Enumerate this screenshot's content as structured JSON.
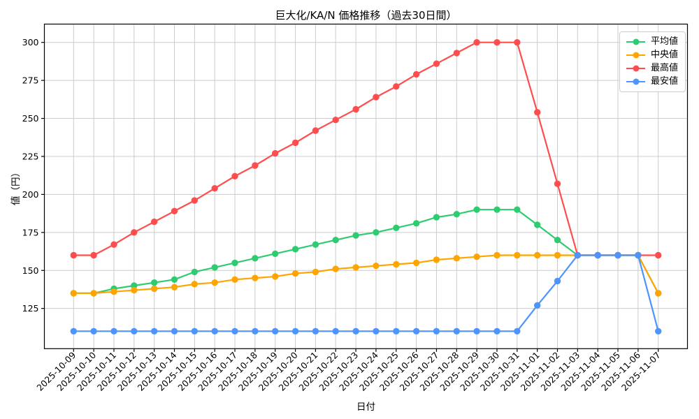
{
  "figure": {
    "title": "巨大化/KA/N 価格推移（過去30日間）",
    "xlabel": "日付",
    "ylabel": "値（円）"
  },
  "chart_data": {
    "type": "line",
    "title": "巨大化/KA/N 価格推移（過去30日間）",
    "xlabel": "日付",
    "ylabel": "値（円）",
    "grid": true,
    "legend_position": "upper right",
    "x_categories": [
      "2025-10-09",
      "2025-10-10",
      "2025-10-11",
      "2025-10-12",
      "2025-10-13",
      "2025-10-14",
      "2025-10-15",
      "2025-10-16",
      "2025-10-17",
      "2025-10-18",
      "2025-10-19",
      "2025-10-20",
      "2025-10-21",
      "2025-10-22",
      "2025-10-23",
      "2025-10-24",
      "2025-10-25",
      "2025-10-26",
      "2025-10-27",
      "2025-10-28",
      "2025-10-29",
      "2025-10-30",
      "2025-10-31",
      "2025-11-01",
      "2025-11-02",
      "2025-11-03",
      "2025-11-04",
      "2025-11-05",
      "2025-11-06",
      "2025-11-07"
    ],
    "series": [
      {
        "name": "平均値",
        "color": "#2ecc71",
        "values": [
          135,
          135,
          138,
          140,
          142,
          144,
          149,
          152,
          155,
          158,
          161,
          164,
          167,
          170,
          173,
          175,
          178,
          181,
          185,
          187,
          190,
          190,
          190,
          180,
          170,
          160,
          160,
          160,
          160,
          135
        ]
      },
      {
        "name": "中央値",
        "color": "#ffa502",
        "values": [
          135,
          135,
          136,
          137,
          138,
          139,
          141,
          142,
          144,
          145,
          146,
          148,
          149,
          151,
          152,
          153,
          154,
          155,
          157,
          158,
          159,
          160,
          160,
          160,
          160,
          160,
          160,
          160,
          160,
          135
        ]
      },
      {
        "name": "最高値",
        "color": "#ff4d4d",
        "values": [
          160,
          160,
          167,
          175,
          182,
          189,
          196,
          204,
          212,
          219,
          227,
          234,
          242,
          249,
          256,
          264,
          271,
          279,
          286,
          293,
          300,
          300,
          300,
          254,
          207,
          160,
          160,
          160,
          160,
          160
        ]
      },
      {
        "name": "最安値",
        "color": "#4d94ff",
        "values": [
          110,
          110,
          110,
          110,
          110,
          110,
          110,
          110,
          110,
          110,
          110,
          110,
          110,
          110,
          110,
          110,
          110,
          110,
          110,
          110,
          110,
          110,
          110,
          127,
          143,
          160,
          160,
          160,
          160,
          110
        ]
      }
    ],
    "yticks": [
      125,
      150,
      175,
      200,
      225,
      250,
      275,
      300
    ],
    "ylim": [
      98.5,
      312
    ],
    "xtick_rotation_deg": 45,
    "grid_color": "#cccccc",
    "frame_color": "#000000"
  }
}
